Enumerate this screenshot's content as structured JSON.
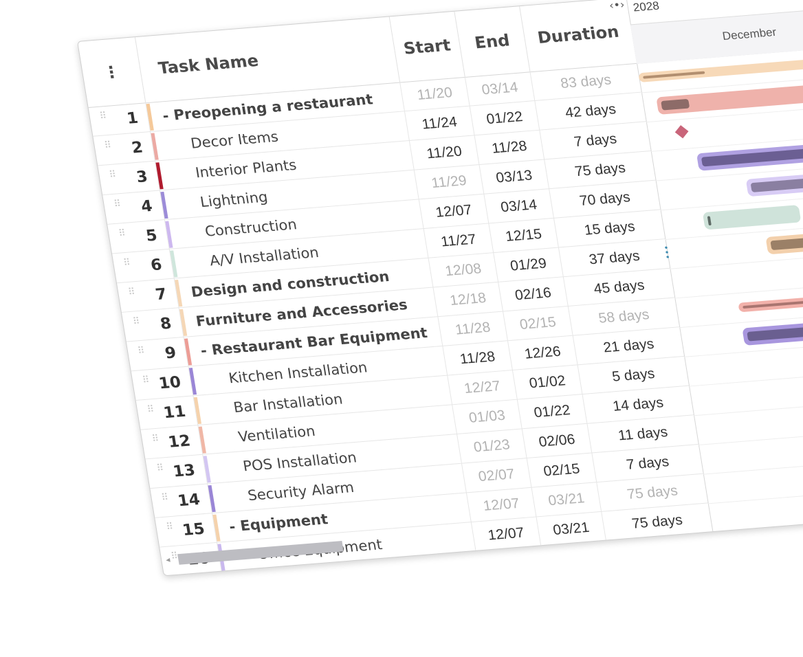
{
  "header": {
    "menu_icon": "vertical-dots-icon",
    "columns": {
      "task_name": "Task Name",
      "start": "Start",
      "end": "End",
      "duration": "Duration"
    }
  },
  "timeline": {
    "year": "2028",
    "month": "December"
  },
  "tasks": [
    {
      "num": "1",
      "name": "-  Preopening a restaurant",
      "bold": true,
      "indent": 0,
      "start": "11/20",
      "end": "03/14",
      "duration": "83 days",
      "muted": [
        true,
        true,
        true
      ],
      "color": "#f5c99a"
    },
    {
      "num": "2",
      "name": "Decor Items",
      "bold": false,
      "indent": 1,
      "start": "11/24",
      "end": "01/22",
      "duration": "42 days",
      "muted": [
        false,
        false,
        false
      ],
      "color": "#ecaaa4"
    },
    {
      "num": "3",
      "name": "Interior Plants",
      "bold": false,
      "indent": 1,
      "start": "11/20",
      "end": "11/28",
      "duration": "7 days",
      "muted": [
        false,
        false,
        false
      ],
      "color": "#b01b2e"
    },
    {
      "num": "4",
      "name": "Lightning",
      "bold": false,
      "indent": 1,
      "start": "11/29",
      "end": "03/13",
      "duration": "75 days",
      "muted": [
        true,
        false,
        false
      ],
      "color": "#9c8cd8"
    },
    {
      "num": "5",
      "name": "Construction",
      "bold": false,
      "indent": 1,
      "start": "12/07",
      "end": "03/14",
      "duration": "70 days",
      "muted": [
        false,
        false,
        false
      ],
      "color": "#cdb8ef"
    },
    {
      "num": "6",
      "name": "A/V Installation",
      "bold": false,
      "indent": 1,
      "start": "11/27",
      "end": "12/15",
      "duration": "15 days",
      "muted": [
        false,
        false,
        false
      ],
      "color": "#cfe6dc"
    },
    {
      "num": "7",
      "name": "Design and construction",
      "bold": true,
      "indent": 0,
      "start": "12/08",
      "end": "01/29",
      "duration": "37 days",
      "muted": [
        true,
        false,
        false
      ],
      "color": "#f5d7b6"
    },
    {
      "num": "8",
      "name": "Furniture and Accessories",
      "bold": true,
      "indent": 0,
      "start": "12/18",
      "end": "02/16",
      "duration": "45 days",
      "muted": [
        true,
        false,
        false
      ],
      "color": "#f5d7b6"
    },
    {
      "num": "9",
      "name": "-  Restaurant Bar Equipment",
      "bold": true,
      "indent": 0,
      "start": "11/28",
      "end": "02/15",
      "duration": "58 days",
      "muted": [
        true,
        true,
        true
      ],
      "color": "#ec9d96"
    },
    {
      "num": "10",
      "name": "Kitchen Installation",
      "bold": false,
      "indent": 1,
      "start": "11/28",
      "end": "12/26",
      "duration": "21 days",
      "muted": [
        false,
        false,
        false
      ],
      "color": "#9a86d6"
    },
    {
      "num": "11",
      "name": "Bar Installation",
      "bold": false,
      "indent": 1,
      "start": "12/27",
      "end": "01/02",
      "duration": "5 days",
      "muted": [
        true,
        false,
        false
      ],
      "color": "#f5d2ac"
    },
    {
      "num": "12",
      "name": "Ventilation",
      "bold": false,
      "indent": 1,
      "start": "01/03",
      "end": "01/22",
      "duration": "14 days",
      "muted": [
        true,
        false,
        false
      ],
      "color": "#f0b7a6"
    },
    {
      "num": "13",
      "name": "POS Installation",
      "bold": false,
      "indent": 1,
      "start": "01/23",
      "end": "02/06",
      "duration": "11 days",
      "muted": [
        true,
        false,
        false
      ],
      "color": "#d3c6f2"
    },
    {
      "num": "14",
      "name": "Security Alarm",
      "bold": false,
      "indent": 1,
      "start": "02/07",
      "end": "02/15",
      "duration": "7 days",
      "muted": [
        true,
        false,
        false
      ],
      "color": "#9a86d6"
    },
    {
      "num": "15",
      "name": "-  Equipment",
      "bold": true,
      "indent": 0,
      "start": "12/07",
      "end": "03/21",
      "duration": "75 days",
      "muted": [
        true,
        true,
        true
      ],
      "color": "#f5d2ac"
    },
    {
      "num": "16",
      "name": "Office Equipment",
      "bold": false,
      "indent": 1,
      "start": "12/07",
      "end": "03/21",
      "duration": "75 days",
      "muted": [
        false,
        false,
        false
      ],
      "color": "#c9b8ee"
    }
  ],
  "bars": [
    {
      "row": 0,
      "x": 0,
      "w": 500,
      "fill": "#f7d9b8",
      "inner": "#b28f70",
      "iw": 90,
      "thin": true
    },
    {
      "row": 1,
      "x": 20,
      "w": 480,
      "fill": "#efb2ab",
      "inner": "#8d6b68",
      "iw": 40
    },
    {
      "row": 2,
      "x": 42,
      "w": 0,
      "fill": "#c9657a",
      "diamond": true
    },
    {
      "row": 3,
      "x": 65,
      "w": 435,
      "fill": "#b0a1e2",
      "inner": "#6b5f93",
      "iw": 190
    },
    {
      "row": 4,
      "x": 130,
      "w": 370,
      "fill": "#d8ccf5",
      "inner": "#8a7fa1",
      "iw": 160
    },
    {
      "row": 5,
      "x": 60,
      "w": 140,
      "fill": "#cfe3da",
      "inner": "#5e6b66",
      "iw": 4
    },
    {
      "row": 6,
      "x": 145,
      "w": 355,
      "fill": "#f3d0ac",
      "inner": "#9b8067",
      "iw": 170
    },
    {
      "row": 7,
      "x": 225,
      "w": 275,
      "fill": "#f5d7b6",
      "inner": "#8c7d6f",
      "iw": 30
    },
    {
      "row": 8,
      "x": 90,
      "w": 410,
      "fill": "#f2b1aa",
      "inner": "#a97570",
      "iw": 180,
      "thin": true
    },
    {
      "row": 9,
      "x": 90,
      "w": 210,
      "fill": "#a896de",
      "inner": "#6a5f90",
      "iw": 95
    },
    {
      "row": 10,
      "x": 310,
      "w": 190,
      "fill": "#f5d2ac",
      "inner": "#9b8067",
      "iw": 6
    },
    {
      "row": 13,
      "x": 190,
      "w": 310,
      "fill": "#f5d7b6",
      "inner": "#9b8067",
      "iw": 200,
      "thin": true
    },
    {
      "row": 14,
      "x": 190,
      "w": 310,
      "fill": "#d1c4f3",
      "inner": "#7d7a90",
      "iw": 200
    }
  ]
}
